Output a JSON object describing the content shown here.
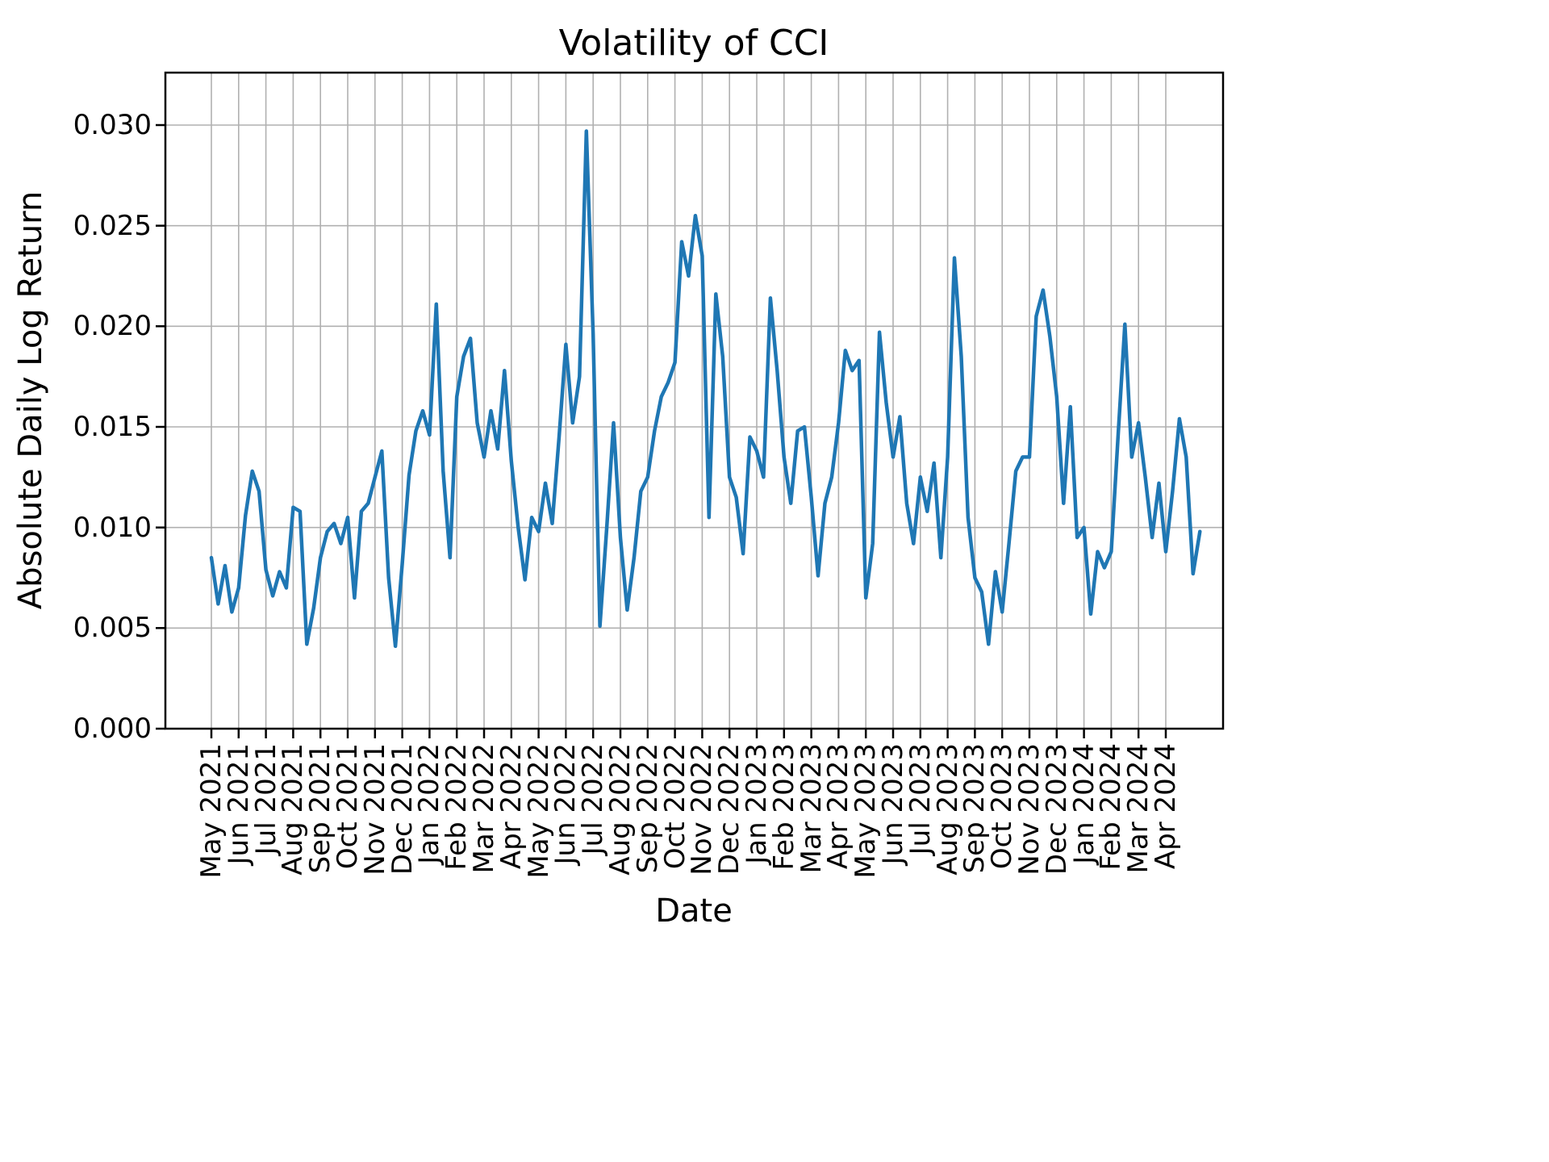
{
  "title": "Volatility of CCI",
  "xlabel": "Date",
  "ylabel": "Absolute Daily Log Return",
  "chart_data": {
    "type": "line",
    "title": "Volatility of CCI",
    "xlabel": "Date",
    "ylabel": "Absolute Daily Log Return",
    "legend": "none",
    "grid": true,
    "grid_color": "#b0b0b0",
    "line_color": "#1f77b4",
    "background_color": "#ffffff",
    "ylim": [
      0.0,
      0.0326
    ],
    "y_ticks": [
      0.0,
      0.005,
      0.01,
      0.015,
      0.02,
      0.025,
      0.03
    ],
    "y_tick_labels": [
      "0.000",
      "0.005",
      "0.010",
      "0.015",
      "0.020",
      "0.025",
      "0.030"
    ],
    "x_tick_labels": [
      "May 2021",
      "Jun 2021",
      "Jul 2021",
      "Aug 2021",
      "Sep 2021",
      "Oct 2021",
      "Nov 2021",
      "Dec 2021",
      "Jan 2022",
      "Feb 2022",
      "Mar 2022",
      "Apr 2022",
      "May 2022",
      "Jun 2022",
      "Jul 2022",
      "Aug 2022",
      "Sep 2022",
      "Oct 2022",
      "Nov 2022",
      "Dec 2022",
      "Jan 2023",
      "Feb 2023",
      "Mar 2023",
      "Apr 2023",
      "May 2023",
      "Jun 2023",
      "Jul 2023",
      "Aug 2023",
      "Sep 2023",
      "Oct 2023",
      "Nov 2023",
      "Dec 2023",
      "Jan 2024",
      "Feb 2024",
      "Mar 2024",
      "Apr 2024"
    ],
    "series": [
      {
        "name": "Absolute Daily Log Return",
        "start_month_index": 0,
        "month_step": 0.25,
        "values": [
          0.0085,
          0.0062,
          0.0081,
          0.0058,
          0.007,
          0.0106,
          0.0128,
          0.0118,
          0.0079,
          0.0066,
          0.0078,
          0.007,
          0.011,
          0.0108,
          0.0042,
          0.006,
          0.0085,
          0.0098,
          0.0102,
          0.0092,
          0.0105,
          0.0065,
          0.0108,
          0.0112,
          0.0125,
          0.0138,
          0.0075,
          0.0041,
          0.0082,
          0.0126,
          0.0148,
          0.0158,
          0.0146,
          0.0211,
          0.0128,
          0.0085,
          0.0165,
          0.0185,
          0.0194,
          0.0152,
          0.0135,
          0.0158,
          0.0139,
          0.0178,
          0.0133,
          0.01,
          0.0074,
          0.0105,
          0.0098,
          0.0122,
          0.0102,
          0.0145,
          0.0191,
          0.0152,
          0.0175,
          0.0297,
          0.0196,
          0.0051,
          0.01,
          0.0152,
          0.0095,
          0.0059,
          0.0085,
          0.0118,
          0.0125,
          0.0148,
          0.0165,
          0.0172,
          0.0182,
          0.0242,
          0.0225,
          0.0255,
          0.0235,
          0.0105,
          0.0216,
          0.0185,
          0.0125,
          0.0115,
          0.0087,
          0.0145,
          0.0138,
          0.0125,
          0.0214,
          0.0178,
          0.0135,
          0.0112,
          0.0148,
          0.015,
          0.0115,
          0.0076,
          0.0112,
          0.0125,
          0.0152,
          0.0188,
          0.0178,
          0.0183,
          0.0065,
          0.0092,
          0.0197,
          0.0162,
          0.0135,
          0.0155,
          0.0112,
          0.0092,
          0.0125,
          0.0108,
          0.0132,
          0.0085,
          0.0135,
          0.0234,
          0.0185,
          0.0105,
          0.0075,
          0.0068,
          0.0042,
          0.0078,
          0.0058,
          0.0092,
          0.0128,
          0.0135,
          0.0135,
          0.0205,
          0.0218,
          0.0195,
          0.0165,
          0.0112,
          0.016,
          0.0095,
          0.01,
          0.0057,
          0.0088,
          0.008,
          0.0088,
          0.0145,
          0.0201,
          0.0135,
          0.0152,
          0.0125,
          0.0095,
          0.0122,
          0.0088,
          0.0118,
          0.0154,
          0.0135,
          0.0077,
          0.0098
        ]
      }
    ]
  }
}
